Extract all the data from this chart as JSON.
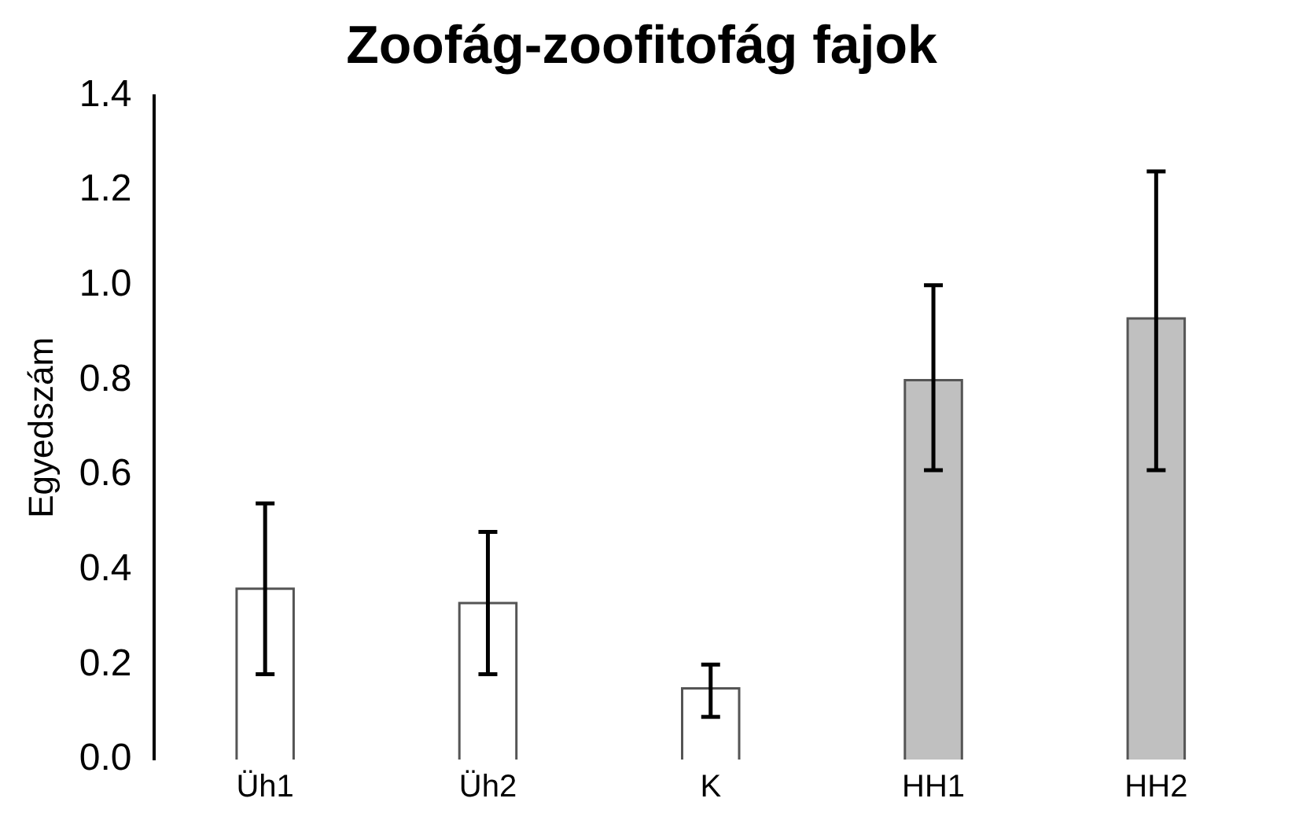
{
  "chart_data": {
    "type": "bar",
    "title": "Zoofág-zoofitofág fajok",
    "ylabel": "Egyedszám",
    "categories": [
      "Üh1",
      "Üh2",
      "K",
      "HH1",
      "HH2"
    ],
    "values": [
      0.36,
      0.33,
      0.15,
      0.8,
      0.93
    ],
    "colors": [
      "#ffffff",
      "#ffffff",
      "#ffffff",
      "#c0c0c0",
      "#c0c0c0"
    ],
    "errors": [
      [
        0.18,
        0.54
      ],
      [
        0.18,
        0.48
      ],
      [
        0.09,
        0.2
      ],
      [
        0.61,
        1.0
      ],
      [
        0.61,
        1.24
      ]
    ],
    "ylim": [
      0,
      1.4
    ],
    "yticks": [
      {
        "value": 0,
        "label": "0.0"
      },
      0.2,
      0.4,
      0.6,
      0.8,
      {
        "value": 1,
        "label": "1.0"
      },
      1.2,
      1.4
    ],
    "grid": false,
    "legend": false
  }
}
